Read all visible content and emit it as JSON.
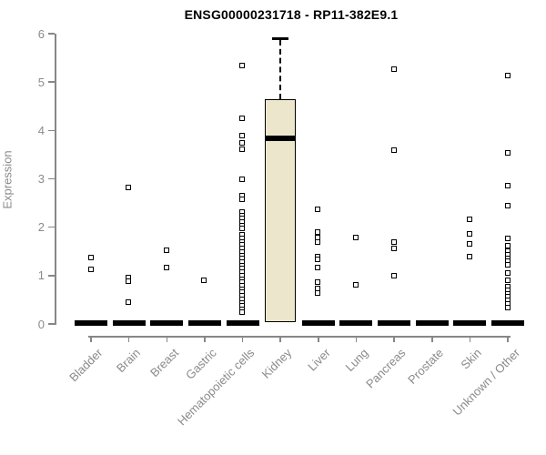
{
  "title": "ENSG00000231718 - RP11-382E9.1",
  "chart_data": {
    "type": "boxplot",
    "title": "ENSG00000231718 - RP11-382E9.1",
    "xlabel": "",
    "ylabel": "Expression",
    "ylim": [
      0,
      6
    ],
    "yticks": [
      0,
      1,
      2,
      3,
      4,
      5,
      6
    ],
    "grid": "off",
    "legend": "none",
    "categories": [
      "Bladder",
      "Brain",
      "Breast",
      "Gastric",
      "Hematopoietic cells",
      "Kidney",
      "Liver",
      "Lung",
      "Pancreas",
      "Prostate",
      "Skin",
      "Unknown / Other"
    ],
    "boxes": [
      {
        "category": "Bladder",
        "q1": 0,
        "median": 0,
        "q3": 0,
        "whisker_low": 0,
        "whisker_high": 0,
        "points": [
          1.37,
          1.13
        ]
      },
      {
        "category": "Brain",
        "q1": 0,
        "median": 0,
        "q3": 0,
        "whisker_low": 0,
        "whisker_high": 0,
        "points": [
          2.82,
          0.95,
          0.88,
          0.45
        ]
      },
      {
        "category": "Breast",
        "q1": 0,
        "median": 0,
        "q3": 0,
        "whisker_low": 0,
        "whisker_high": 0,
        "points": [
          1.52,
          1.17
        ]
      },
      {
        "category": "Gastric",
        "q1": 0,
        "median": 0,
        "q3": 0,
        "whisker_low": 0,
        "whisker_high": 0,
        "points": [
          0.9
        ]
      },
      {
        "category": "Hematopoietic cells",
        "q1": 0,
        "median": 0,
        "q3": 0,
        "whisker_low": 0,
        "whisker_high": 0,
        "points": [
          5.34,
          4.25,
          3.89,
          3.74,
          3.62,
          2.99,
          2.66,
          2.58,
          2.31,
          2.24,
          2.18,
          2.1,
          2.03,
          1.97,
          1.84,
          1.77,
          1.7,
          1.63,
          1.56,
          1.49,
          1.42,
          1.35,
          1.28,
          1.21,
          1.14,
          1.07,
          1.0,
          0.93,
          0.86,
          0.79,
          0.72,
          0.65,
          0.58,
          0.51,
          0.44,
          0.37,
          0.3,
          0.24
        ]
      },
      {
        "category": "Kidney",
        "q1": 0,
        "median": 3.83,
        "q3": 4.64,
        "whisker_low": 0,
        "whisker_high": 5.9,
        "points": []
      },
      {
        "category": "Liver",
        "q1": 0,
        "median": 0,
        "q3": 0,
        "whisker_low": 0,
        "whisker_high": 0,
        "points": [
          2.37,
          1.9,
          1.78,
          1.7,
          1.39,
          1.33,
          1.17,
          0.86,
          0.74,
          0.64
        ]
      },
      {
        "category": "Lung",
        "q1": 0,
        "median": 0,
        "q3": 0,
        "whisker_low": 0,
        "whisker_high": 0,
        "points": [
          1.78,
          0.81
        ]
      },
      {
        "category": "Pancreas",
        "q1": 0,
        "median": 0,
        "q3": 0,
        "whisker_low": 0,
        "whisker_high": 0,
        "points": [
          5.26,
          3.59,
          1.69,
          1.57,
          1.0
        ]
      },
      {
        "category": "Prostate",
        "q1": 0,
        "median": 0,
        "q3": 0,
        "whisker_low": 0,
        "whisker_high": 0,
        "points": []
      },
      {
        "category": "Skin",
        "q1": 0,
        "median": 0,
        "q3": 0,
        "whisker_low": 0,
        "whisker_high": 0,
        "points": [
          2.16,
          1.86,
          1.65,
          1.39
        ]
      },
      {
        "category": "Unknown / Other",
        "q1": 0,
        "median": 0,
        "q3": 0,
        "whisker_low": 0,
        "whisker_high": 0,
        "points": [
          5.13,
          3.53,
          2.86,
          2.44,
          1.77,
          1.62,
          1.5,
          1.43,
          1.36,
          1.29,
          1.22,
          1.05,
          0.9,
          0.77,
          0.7,
          0.63,
          0.56,
          0.49,
          0.42,
          0.34
        ]
      }
    ],
    "colors": {
      "box_fill": "#ece7cc",
      "box_border": "#000000",
      "median": "#000000",
      "point_outline": "#000000",
      "point_fill": "#ffffff",
      "axis": "#878787",
      "tick_text": "#8a8a8a",
      "title_text": "#000000",
      "background": "#ffffff"
    }
  }
}
